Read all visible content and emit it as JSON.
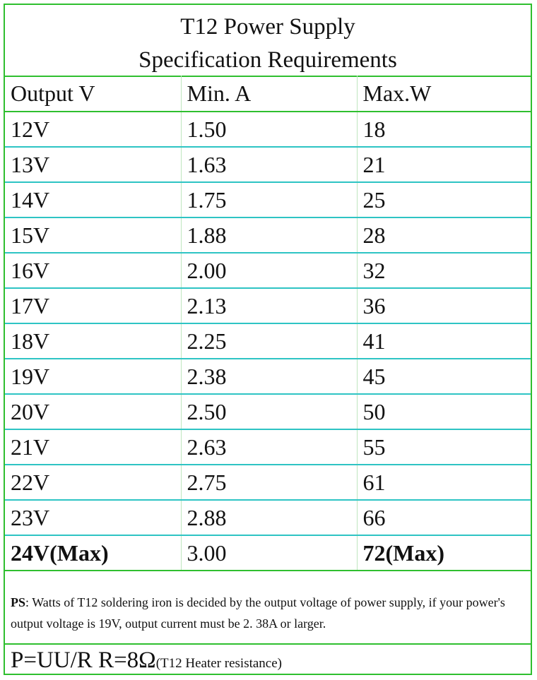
{
  "title": {
    "line1": "T12 Power Supply",
    "line2": "Specification Requirements"
  },
  "table": {
    "headers": [
      "Output V",
      "Min. A",
      "Max.W"
    ],
    "rows": [
      [
        "12V",
        "1.50",
        "18"
      ],
      [
        "13V",
        "1.63",
        "21"
      ],
      [
        "14V",
        "1.75",
        "25"
      ],
      [
        "15V",
        "1.88",
        "28"
      ],
      [
        "16V",
        "2.00",
        "32"
      ],
      [
        "17V",
        "2.13",
        "36"
      ],
      [
        "18V",
        "2.25",
        "41"
      ],
      [
        "19V",
        "2.38",
        "45"
      ],
      [
        "20V",
        "2.50",
        "50"
      ],
      [
        "21V",
        "2.63",
        "55"
      ],
      [
        "22V",
        "2.75",
        "61"
      ],
      [
        "23V",
        "2.88",
        "66"
      ],
      [
        "24V(Max)",
        "3.00",
        "72(Max)"
      ]
    ]
  },
  "note": {
    "prefix": "PS",
    "text": ": Watts of T12 soldering iron is decided by the output voltage of power supply, if your power's output voltage is 19V, output current must be 2. 38A or larger."
  },
  "formula": {
    "main": "P=UU/R R=8Ω",
    "sub": "(T12 Heater resistance)"
  },
  "colors": {
    "border_green": "#2fbf2f",
    "row_cyan": "#2ec4c4"
  }
}
